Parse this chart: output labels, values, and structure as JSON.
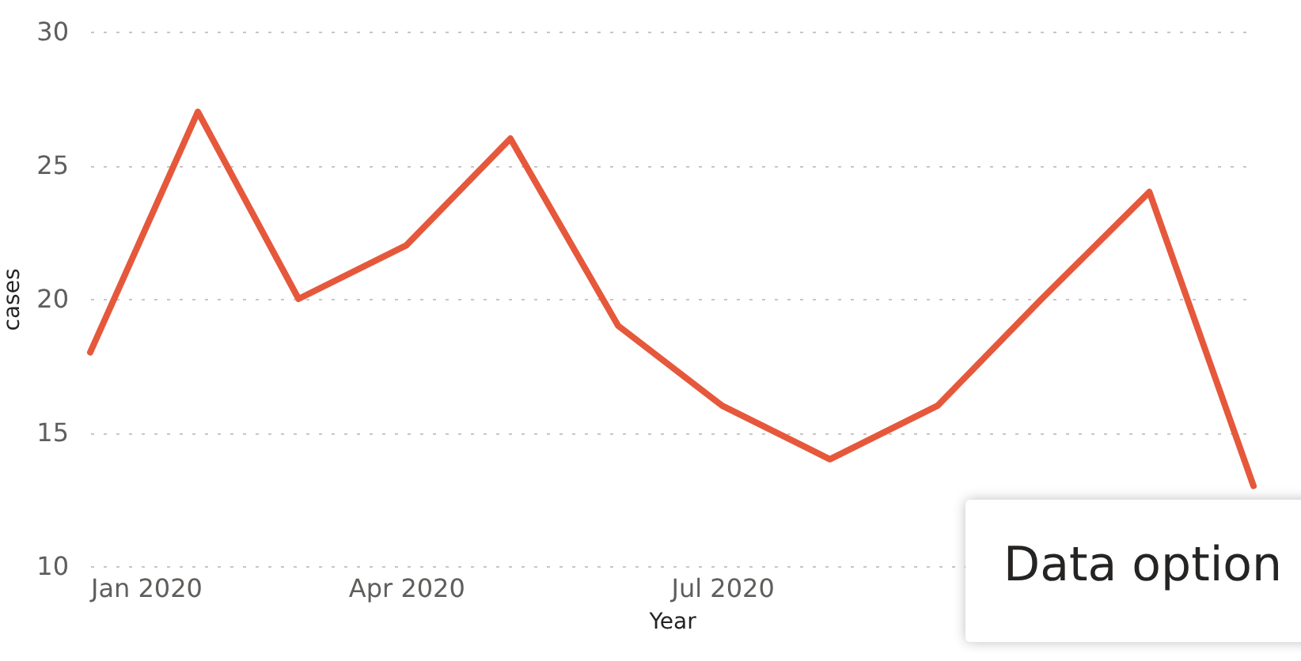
{
  "chart_data": {
    "type": "line",
    "xlabel": "Year",
    "ylabel": "cases",
    "x": [
      "2020-01",
      "2020-02",
      "2020-03",
      "2020-04",
      "2020-05",
      "2020-06",
      "2020-07",
      "2020-08",
      "2020-09",
      "2020-10",
      "2020-11",
      "2020-12"
    ],
    "series": [
      {
        "color": "#e6583b",
        "values": [
          18,
          27,
          20,
          22,
          26,
          19,
          16,
          14,
          16,
          20,
          24,
          13
        ]
      }
    ],
    "xlim": [
      "2020-01",
      "2020-12"
    ],
    "xticks": [
      {
        "value": "2020-01",
        "label": "Jan 2020"
      },
      {
        "value": "2020-04",
        "label": "Apr 2020"
      },
      {
        "value": "2020-07",
        "label": "Jul 2020"
      }
    ],
    "ylim": [
      10,
      30
    ],
    "yticks": [
      10,
      15,
      20,
      25,
      30
    ],
    "grid": "y",
    "marker": "none",
    "line_style": "solid",
    "annotations": [
      "Data option"
    ]
  }
}
